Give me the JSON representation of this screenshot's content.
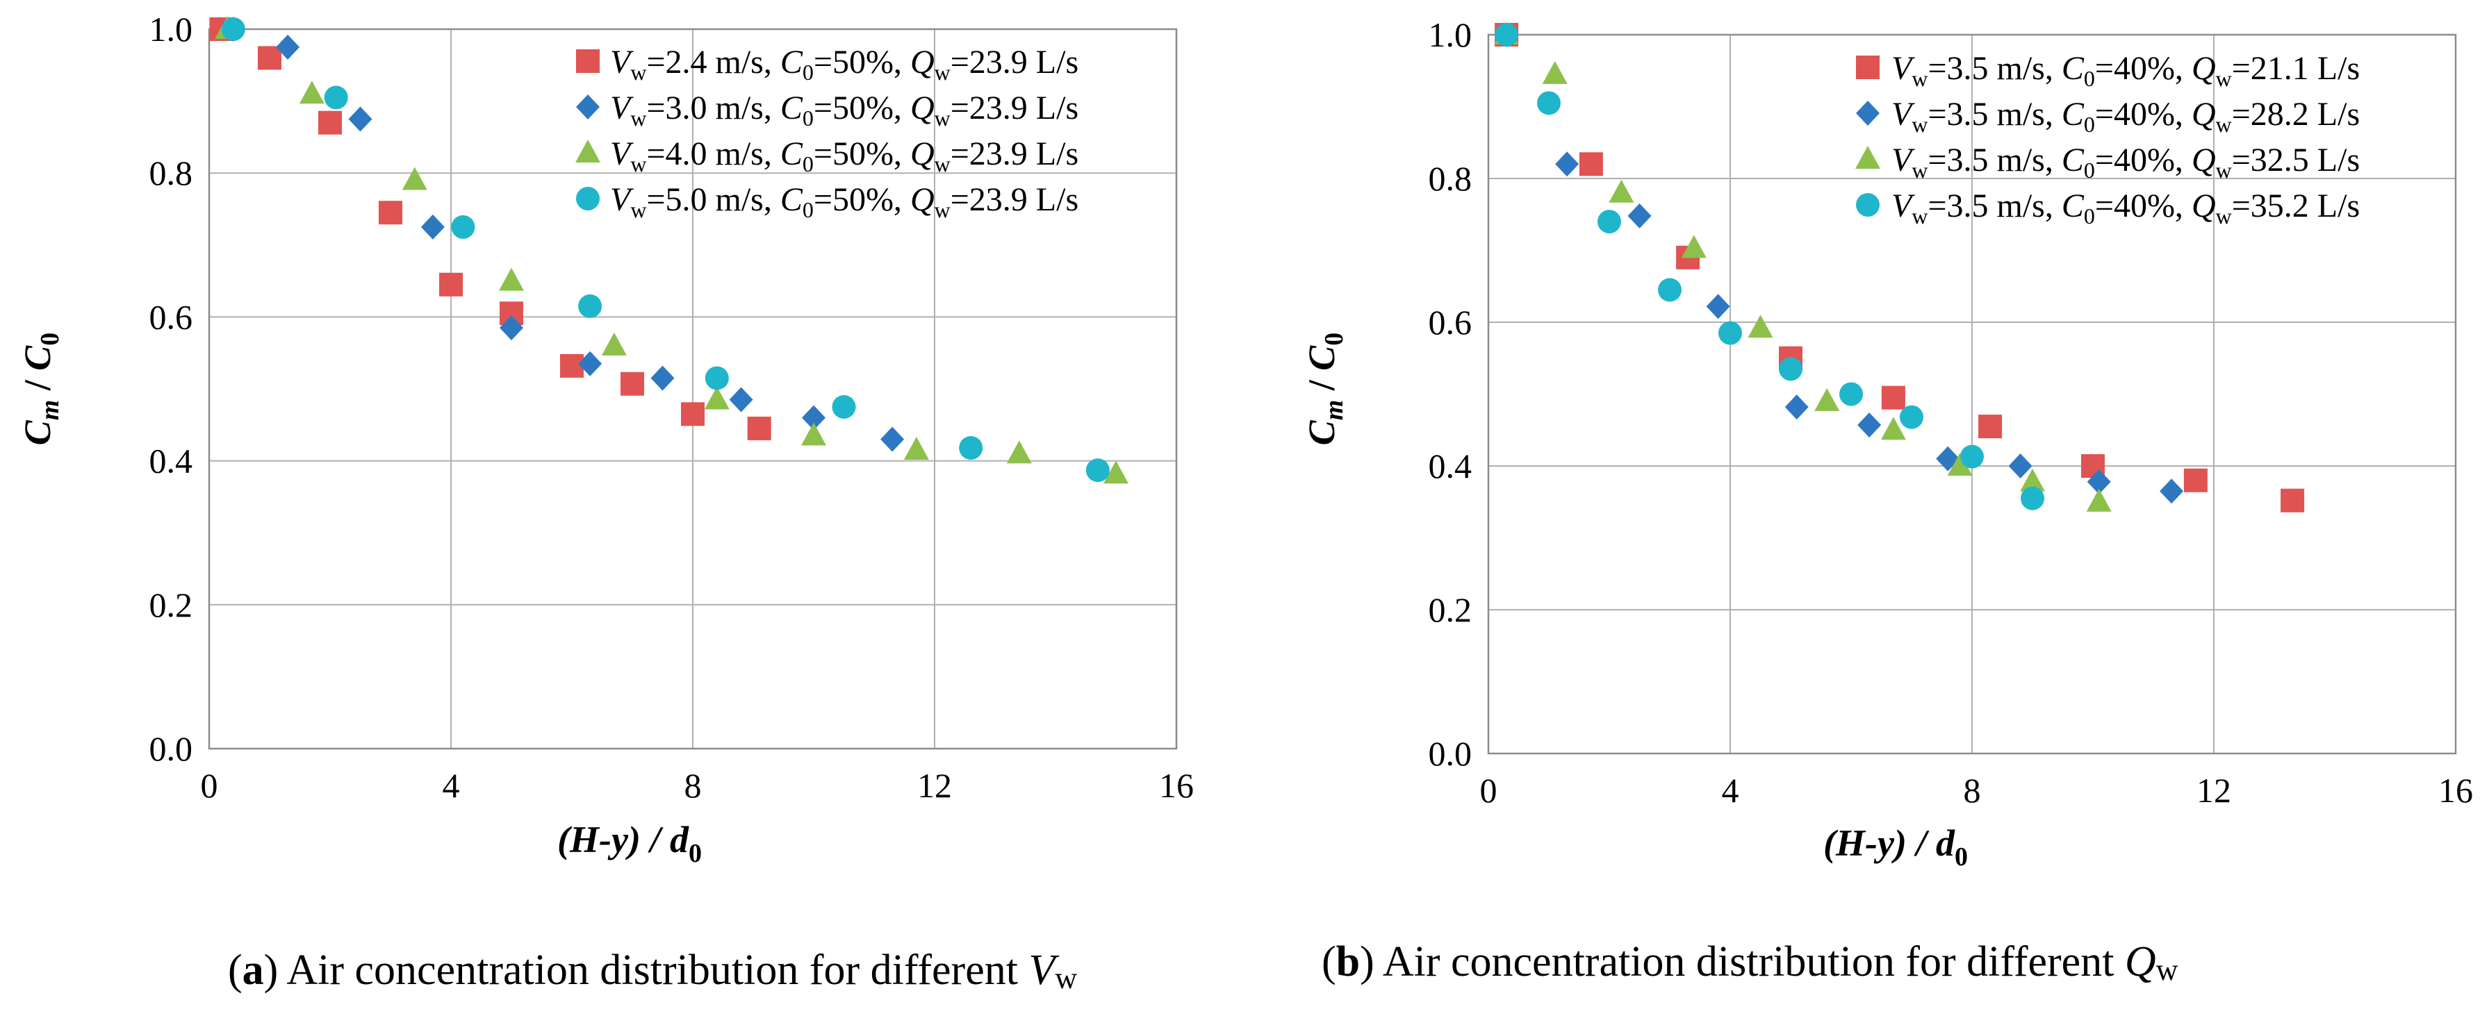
{
  "colors": {
    "red": "#E05353",
    "blue": "#2E78C2",
    "green": "#8DC04B",
    "cyan": "#1FB6CC",
    "grid": "#B0B0B0",
    "axis": "#8C8C8C",
    "text": "#000000"
  },
  "chart_data": [
    {
      "type": "scatter",
      "panel_label": "a",
      "caption_text": "Air concentration distribution for different ",
      "caption_var": "V",
      "caption_sub": "w",
      "xlabel": {
        "main": "(H-y) / d",
        "sub": "0"
      },
      "ylabel": {
        "top": "C",
        "top_sub": "m",
        "bottom": "C",
        "bottom_sub": "0"
      },
      "xlim": [
        0,
        16
      ],
      "ylim": [
        0,
        1.0
      ],
      "xticks": [
        0,
        4,
        8,
        12,
        16
      ],
      "yticks": [
        0.0,
        0.2,
        0.4,
        0.6,
        0.8,
        1.0
      ],
      "xtick_labels": [
        "0",
        "4",
        "8",
        "12",
        "16"
      ],
      "ytick_labels": [
        "0.0",
        "0.2",
        "0.4",
        "0.6",
        "0.8",
        "1.0"
      ],
      "grid": true,
      "legend_position": "top-right",
      "series": [
        {
          "marker": "square",
          "color": "red",
          "legend": {
            "v": "V",
            "vsub": "w",
            "vval": "=2.4 m/s, ",
            "c": "C",
            "csub": "0",
            "cval": "=50%, ",
            "q": "Q",
            "qsub": "w",
            "qval": "=23.9 L/s"
          },
          "points": [
            [
              0.2,
              1.0
            ],
            [
              1.0,
              0.96
            ],
            [
              2.0,
              0.87
            ],
            [
              3.0,
              0.745
            ],
            [
              4.0,
              0.645
            ],
            [
              5.0,
              0.605
            ],
            [
              6.0,
              0.532
            ],
            [
              7.0,
              0.507
            ],
            [
              8.0,
              0.465
            ],
            [
              9.1,
              0.445
            ]
          ]
        },
        {
          "marker": "diamond",
          "color": "blue",
          "legend": {
            "v": "V",
            "vsub": "w",
            "vval": "=3.0 m/s, ",
            "c": "C",
            "csub": "0",
            "cval": "=50%, ",
            "q": "Q",
            "qsub": "w",
            "qval": "=23.9 L/s"
          },
          "points": [
            [
              0.4,
              1.0
            ],
            [
              1.3,
              0.975
            ],
            [
              2.5,
              0.875
            ],
            [
              3.7,
              0.725
            ],
            [
              5.0,
              0.585
            ],
            [
              6.3,
              0.535
            ],
            [
              7.5,
              0.515
            ],
            [
              8.8,
              0.485
            ],
            [
              10.0,
              0.46
            ],
            [
              11.3,
              0.43
            ]
          ]
        },
        {
          "marker": "triangle",
          "color": "green",
          "legend": {
            "v": "V",
            "vsub": "w",
            "vval": "=4.0 m/s, ",
            "c": "C",
            "csub": "0",
            "cval": "=50%, ",
            "q": "Q",
            "qsub": "w",
            "qval": "=23.9 L/s"
          },
          "points": [
            [
              0.3,
              1.0
            ],
            [
              1.7,
              0.91
            ],
            [
              3.4,
              0.79
            ],
            [
              5.0,
              0.65
            ],
            [
              6.7,
              0.56
            ],
            [
              8.4,
              0.485
            ],
            [
              10.0,
              0.435
            ],
            [
              11.7,
              0.415
            ],
            [
              13.4,
              0.41
            ],
            [
              15.0,
              0.382
            ]
          ]
        },
        {
          "marker": "circle",
          "color": "cyan",
          "legend": {
            "v": "V",
            "vsub": "w",
            "vval": "=5.0 m/s, ",
            "c": "C",
            "csub": "0",
            "cval": "=50%, ",
            "q": "Q",
            "qsub": "w",
            "qval": "=23.9 L/s"
          },
          "points": [
            [
              0.4,
              1.0
            ],
            [
              2.1,
              0.905
            ],
            [
              4.2,
              0.725
            ],
            [
              6.3,
              0.615
            ],
            [
              8.4,
              0.515
            ],
            [
              10.5,
              0.475
            ],
            [
              12.6,
              0.418
            ],
            [
              14.7,
              0.387
            ]
          ]
        }
      ]
    },
    {
      "type": "scatter",
      "panel_label": "b",
      "caption_text": "Air concentration distribution for different ",
      "caption_var": "Q",
      "caption_sub": "w",
      "xlabel": {
        "main": "(H-y) / d",
        "sub": "0"
      },
      "ylabel": {
        "top": "C",
        "top_sub": "m",
        "bottom": "C",
        "bottom_sub": "0"
      },
      "xlim": [
        0,
        16
      ],
      "ylim": [
        0,
        1.0
      ],
      "xticks": [
        0,
        4,
        8,
        12,
        16
      ],
      "yticks": [
        0.0,
        0.2,
        0.4,
        0.6,
        0.8,
        1.0
      ],
      "xtick_labels": [
        "0",
        "4",
        "8",
        "12",
        "16"
      ],
      "ytick_labels": [
        "0.0",
        "0.2",
        "0.4",
        "0.6",
        "0.8",
        "1.0"
      ],
      "grid": true,
      "legend_position": "top-right",
      "series": [
        {
          "marker": "square",
          "color": "red",
          "legend": {
            "v": "V",
            "vsub": "w",
            "vval": "=3.5 m/s, ",
            "c": "C",
            "csub": "0",
            "cval": "=40%, ",
            "q": "Q",
            "qsub": "w",
            "qval": "=21.1 L/s"
          },
          "points": [
            [
              0.3,
              1.0
            ],
            [
              1.7,
              0.82
            ],
            [
              3.3,
              0.69
            ],
            [
              5.0,
              0.55
            ],
            [
              6.7,
              0.495
            ],
            [
              8.3,
              0.455
            ],
            [
              10.0,
              0.4
            ],
            [
              11.7,
              0.38
            ],
            [
              13.3,
              0.352
            ]
          ]
        },
        {
          "marker": "diamond",
          "color": "blue",
          "legend": {
            "v": "V",
            "vsub": "w",
            "vval": "=3.5 m/s, ",
            "c": "C",
            "csub": "0",
            "cval": "=40%, ",
            "q": "Q",
            "qsub": "w",
            "qval": "=28.2 L/s"
          },
          "points": [
            [
              0.3,
              1.0
            ],
            [
              1.3,
              0.82
            ],
            [
              2.5,
              0.748
            ],
            [
              3.8,
              0.622
            ],
            [
              5.1,
              0.482
            ],
            [
              6.3,
              0.457
            ],
            [
              7.6,
              0.41
            ],
            [
              8.8,
              0.4
            ],
            [
              10.1,
              0.378
            ],
            [
              11.3,
              0.365
            ]
          ]
        },
        {
          "marker": "triangle",
          "color": "green",
          "legend": {
            "v": "V",
            "vsub": "w",
            "vval": "=3.5 m/s, ",
            "c": "C",
            "csub": "0",
            "cval": "=40%, ",
            "q": "Q",
            "qsub": "w",
            "qval": "=32.5 L/s"
          },
          "points": [
            [
              0.3,
              1.0
            ],
            [
              1.1,
              0.945
            ],
            [
              2.2,
              0.78
            ],
            [
              3.4,
              0.703
            ],
            [
              4.5,
              0.592
            ],
            [
              5.6,
              0.49
            ],
            [
              6.7,
              0.45
            ],
            [
              7.8,
              0.4
            ],
            [
              9.0,
              0.378
            ],
            [
              10.1,
              0.35
            ]
          ]
        },
        {
          "marker": "circle",
          "color": "cyan",
          "legend": {
            "v": "V",
            "vsub": "w",
            "vval": "=3.5 m/s, ",
            "c": "C",
            "csub": "0",
            "cval": "=40%, ",
            "q": "Q",
            "qsub": "w",
            "qval": "=35.2 L/s"
          },
          "points": [
            [
              0.3,
              1.0
            ],
            [
              1.0,
              0.905
            ],
            [
              2.0,
              0.74
            ],
            [
              3.0,
              0.645
            ],
            [
              4.0,
              0.585
            ],
            [
              5.0,
              0.535
            ],
            [
              6.0,
              0.5
            ],
            [
              7.0,
              0.468
            ],
            [
              8.0,
              0.413
            ],
            [
              9.0,
              0.355
            ]
          ]
        }
      ]
    }
  ]
}
